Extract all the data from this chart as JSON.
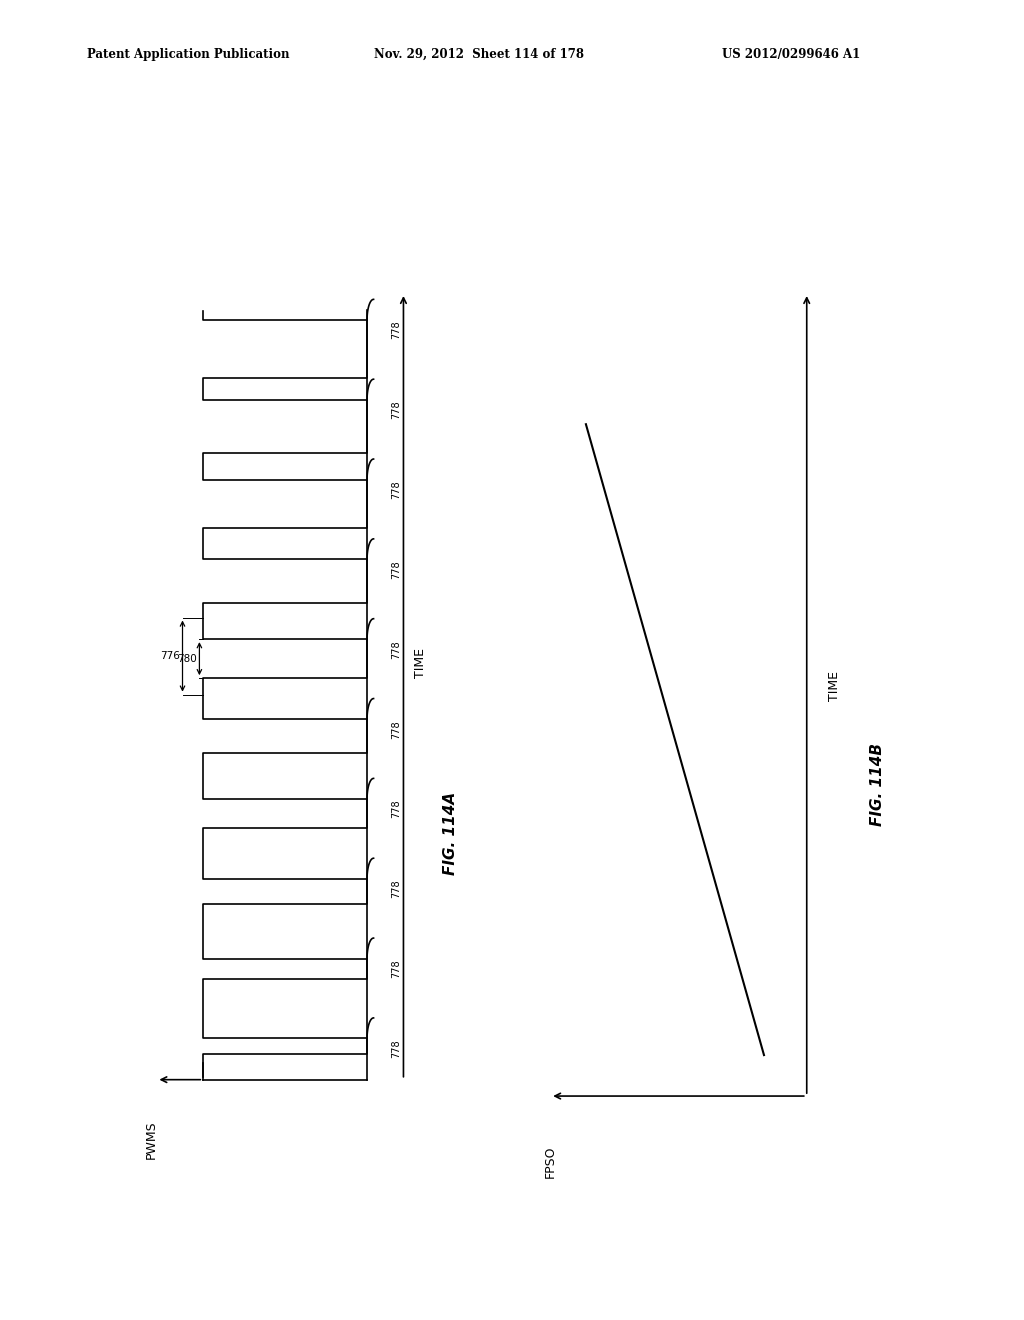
{
  "header_left": "Patent Application Publication",
  "header_mid": "Nov. 29, 2012  Sheet 114 of 178",
  "header_right": "US 2012/0299646 A1",
  "fig_a_label": "FIG. 114A",
  "fig_b_label": "FIG. 114B",
  "left_xaxis_label": "PWMS",
  "left_yaxis_label": "TIME",
  "right_xaxis_label": "FPSO",
  "right_yaxis_label": "TIME",
  "pulse_label": "778",
  "annotation_776": "776",
  "annotation_780": "780",
  "num_pulses": 10,
  "background_color": "#ffffff",
  "line_color": "#000000"
}
